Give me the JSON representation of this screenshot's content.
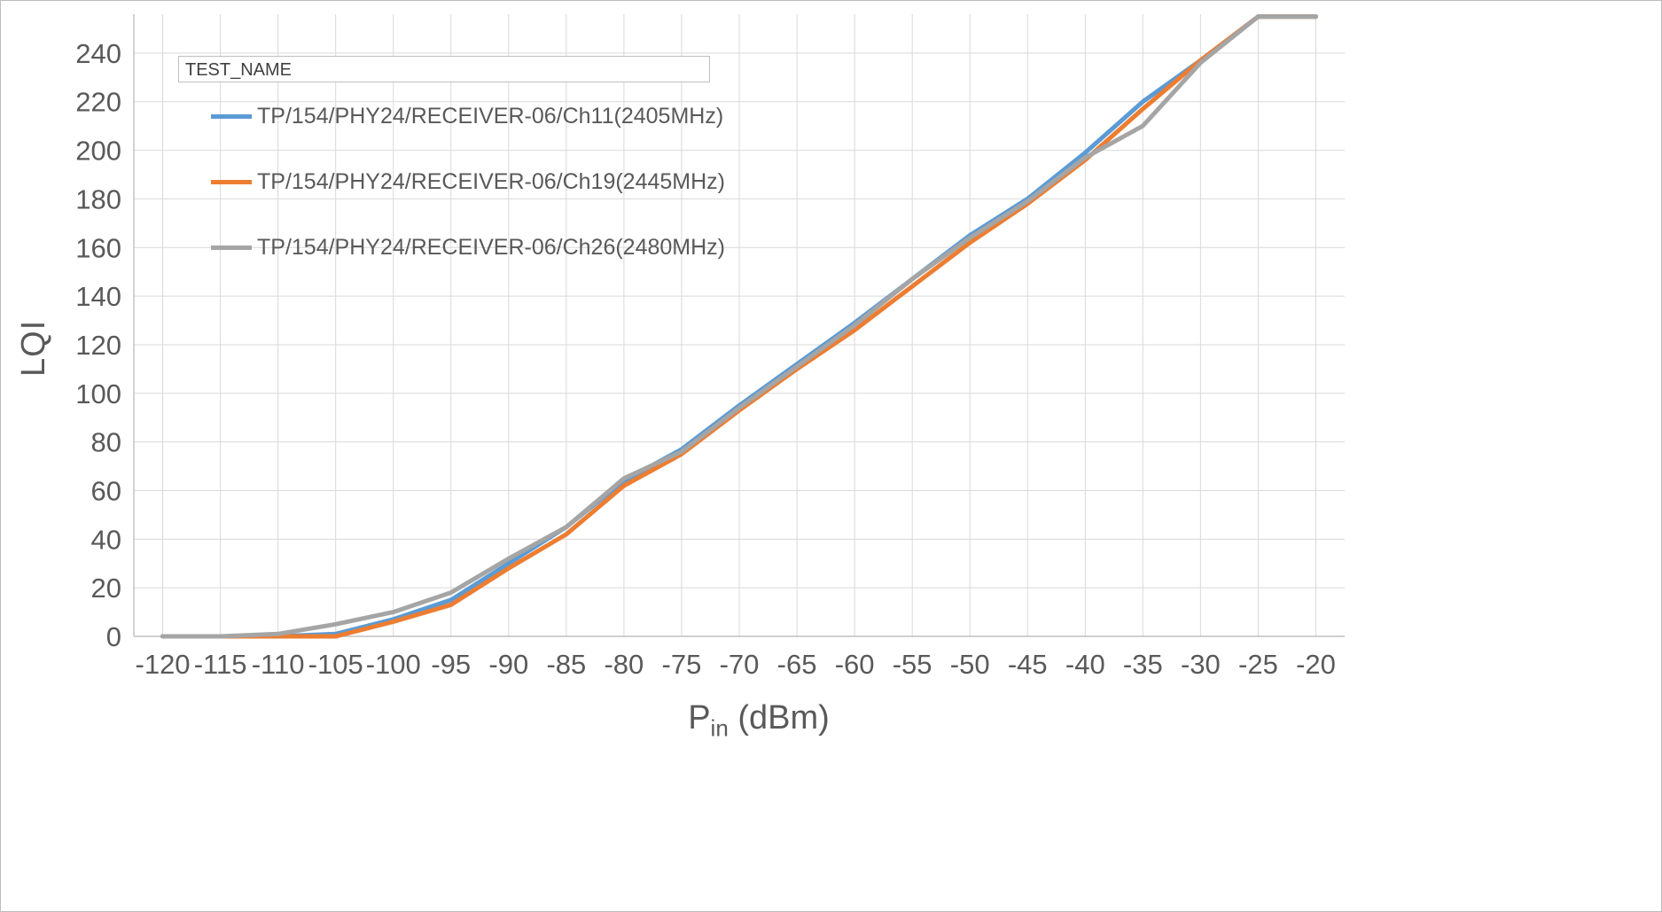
{
  "chart": {
    "legend_title": "TEST_NAME",
    "y_axis_title": "LQI",
    "x_axis_title": {
      "base": "P",
      "sub": "in",
      "rest": " (dBm)"
    }
  },
  "chart_data": {
    "type": "line",
    "title": "",
    "xlabel": "Pin (dBm)",
    "ylabel": "LQI",
    "grid": true,
    "legend_position": "top-left",
    "legend_title": "TEST_NAME",
    "x": [
      -120,
      -115,
      -110,
      -105,
      -100,
      -95,
      -90,
      -85,
      -80,
      -75,
      -70,
      -65,
      -60,
      -55,
      -50,
      -45,
      -40,
      -35,
      -30,
      -25,
      -20
    ],
    "y_ticks": [
      0,
      20,
      40,
      60,
      80,
      100,
      120,
      140,
      160,
      180,
      200,
      220,
      240
    ],
    "ylim": [
      0,
      256
    ],
    "series": [
      {
        "name": "TP/154/PHY24/RECEIVER-06/Ch11(2405MHz)",
        "color": "#5B9BD5",
        "values": [
          0,
          0,
          0,
          1,
          7,
          15,
          30,
          45,
          64,
          77,
          95,
          112,
          129,
          147,
          165,
          180,
          199,
          220,
          237,
          255,
          255
        ]
      },
      {
        "name": "TP/154/PHY24/RECEIVER-06/Ch19(2445MHz)",
        "color": "#ED7D31",
        "values": [
          0,
          0,
          0,
          0,
          6,
          13,
          28,
          42,
          62,
          75,
          93,
          110,
          126,
          144,
          162,
          178,
          196,
          217,
          237,
          255,
          255
        ]
      },
      {
        "name": "TP/154/PHY24/RECEIVER-06/Ch26(2480MHz)",
        "color": "#A5A5A5",
        "values": [
          0,
          0,
          1,
          5,
          10,
          18,
          32,
          45,
          65,
          76,
          94,
          111,
          128,
          147,
          164,
          179,
          197,
          210,
          236,
          255,
          255
        ]
      }
    ]
  }
}
